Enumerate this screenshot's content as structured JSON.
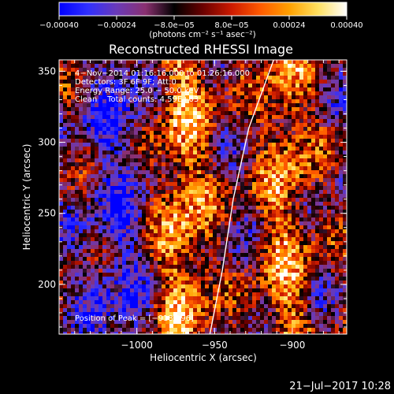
{
  "chart_data": {
    "type": "heatmap",
    "title": "Reconstructed RHESSI Image",
    "xlabel": "Heliocentric X (arcsec)",
    "ylabel": "Heliocentric Y (arcsec)",
    "xlim": [
      -1050,
      -865
    ],
    "ylim": [
      165,
      358
    ],
    "x_ticks": [
      -1000,
      -950,
      -900
    ],
    "x_tick_labels": [
      "−1000",
      "−950",
      "−900"
    ],
    "y_ticks": [
      200,
      250,
      300,
      350
    ],
    "y_tick_labels": [
      "200",
      "250",
      "300",
      "350"
    ],
    "colorbar": {
      "range": [
        -0.0004,
        0.0004
      ],
      "ticks": [
        -0.0004,
        -0.00024,
        -8e-05,
        8e-05,
        0.00024,
        0.0004
      ],
      "tick_labels": [
        "−0.00040",
        "−0.00024",
        "−8.0e−05",
        "8.0e−05",
        "0.00024",
        "0.00040"
      ],
      "label": "(photons cm⁻² s⁻¹ asec⁻²)",
      "position": "top"
    },
    "annotations": [
      "4−Nov−2014 01:16:16.000 to 01:26:16.000",
      "Detectors: 3F 6F 9F; Att:0",
      "Energy Range: 25.0 − 50.0 keV",
      "Clean    Total counts: 4.59E+03"
    ],
    "peak_label": "Position of Peak = [−918,196]",
    "peak_position": [
      -918,
      196
    ],
    "limb_points": [
      [
        -953,
        165
      ],
      [
        -945,
        210
      ],
      [
        -938,
        260
      ],
      [
        -928,
        310
      ],
      [
        -912,
        358
      ]
    ]
  },
  "footer": {
    "timestamp": "21−Jul−2017 10:28"
  },
  "colors": {
    "background": "#000000",
    "foreground": "#ffffff",
    "colormap": [
      "#0000ff",
      "#3030ff",
      "#6a3ab8",
      "#8a3070",
      "#000000",
      "#6a0000",
      "#cc1a00",
      "#ff5a00",
      "#ffa000",
      "#ffe060",
      "#ffffff"
    ]
  }
}
